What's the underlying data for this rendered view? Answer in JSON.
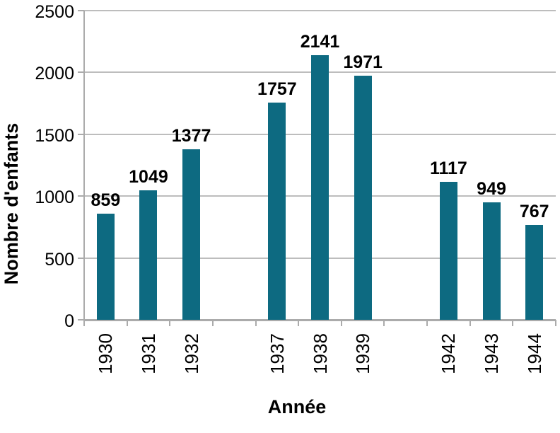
{
  "chart_data": {
    "type": "bar",
    "title": "",
    "xlabel": "Année",
    "ylabel": "Nombre d'enfants",
    "categories": [
      "1930",
      "1931",
      "1932",
      "1937",
      "1938",
      "1939",
      "1942",
      "1943",
      "1944"
    ],
    "values": [
      859,
      1049,
      1377,
      1757,
      2141,
      1971,
      1117,
      949,
      767
    ],
    "ylim": [
      0,
      2500
    ],
    "yticks": [
      0,
      500,
      1000,
      1500,
      2000,
      2500
    ],
    "grid": "horizontal",
    "legend_position": "none",
    "slot_layout": [
      "1930",
      "1931",
      "1932",
      "",
      "1937",
      "1938",
      "1939",
      "",
      "1942",
      "1943",
      "1944"
    ]
  },
  "colors": {
    "bar": "#0d6a81",
    "gridline": "#bdbdbd",
    "axis": "#ababab",
    "text": "#000000",
    "background": "#ffffff"
  }
}
